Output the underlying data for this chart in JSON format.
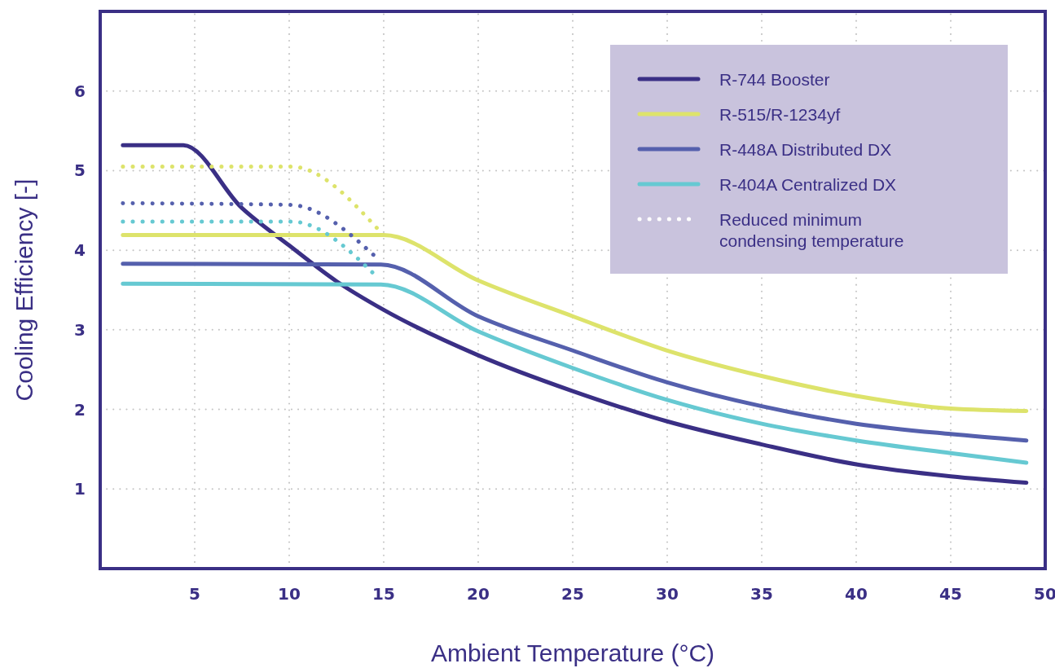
{
  "chart_data": {
    "type": "line",
    "xlabel": "Ambient Temperature (°C)",
    "ylabel": "Cooling Efficiency [-]",
    "xlim": [
      0,
      50
    ],
    "xticks": [
      5,
      10,
      15,
      20,
      25,
      30,
      35,
      40,
      45,
      50
    ],
    "ylim": [
      0,
      7
    ],
    "yticks": [
      1,
      2,
      3,
      4,
      5,
      6
    ],
    "grid": true,
    "legend": "top right",
    "marker": "none",
    "series": [
      {
        "name": "R-744 Booster",
        "color": "#3a2f85",
        "line_style": "solid",
        "x": [
          1.2,
          4.4,
          7.5,
          10,
          12.5,
          15,
          20,
          25,
          30,
          35,
          40,
          45,
          49
        ],
        "values": [
          5.32,
          5.32,
          4.53,
          4.06,
          3.61,
          3.25,
          2.68,
          2.23,
          1.85,
          1.56,
          1.31,
          1.16,
          1.08
        ]
      },
      {
        "name": "R-515/R-1234yf",
        "color": "#dde36b",
        "line_style": "solid",
        "x": [
          1.2,
          15,
          20,
          25,
          30,
          35,
          40,
          45,
          49
        ],
        "values": [
          4.19,
          4.19,
          3.62,
          3.17,
          2.74,
          2.42,
          2.17,
          2.01,
          1.98
        ]
      },
      {
        "name": "R-448A Distributed DX",
        "color": "#5560ad",
        "line_style": "solid",
        "x": [
          1.2,
          14.85,
          20,
          25,
          30,
          35,
          40,
          45,
          49
        ],
        "values": [
          3.83,
          3.82,
          3.17,
          2.74,
          2.34,
          2.04,
          1.82,
          1.69,
          1.61
        ]
      },
      {
        "name": "R-404A Centralized DX",
        "color": "#66c9d2",
        "line_style": "solid",
        "x": [
          1.2,
          14.85,
          20,
          25,
          30,
          35,
          40,
          45,
          49
        ],
        "values": [
          3.58,
          3.57,
          2.98,
          2.52,
          2.12,
          1.82,
          1.61,
          1.45,
          1.33
        ]
      },
      {
        "color": "#dde36b",
        "line_style": "dotted",
        "x": [
          1.2,
          10.1,
          14.75
        ],
        "values": [
          5.05,
          5.05,
          4.25
        ]
      },
      {
        "color": "#5560ad",
        "line_style": "dotted",
        "x": [
          1.2,
          10.05,
          14.65
        ],
        "values": [
          4.59,
          4.57,
          3.9
        ]
      },
      {
        "color": "#66c9d2",
        "line_style": "dotted",
        "x": [
          1.2,
          10.1,
          14.75
        ],
        "values": [
          4.36,
          4.36,
          3.64
        ]
      }
    ],
    "annotations": [
      "Reduced minimum condensing temperature"
    ]
  }
}
